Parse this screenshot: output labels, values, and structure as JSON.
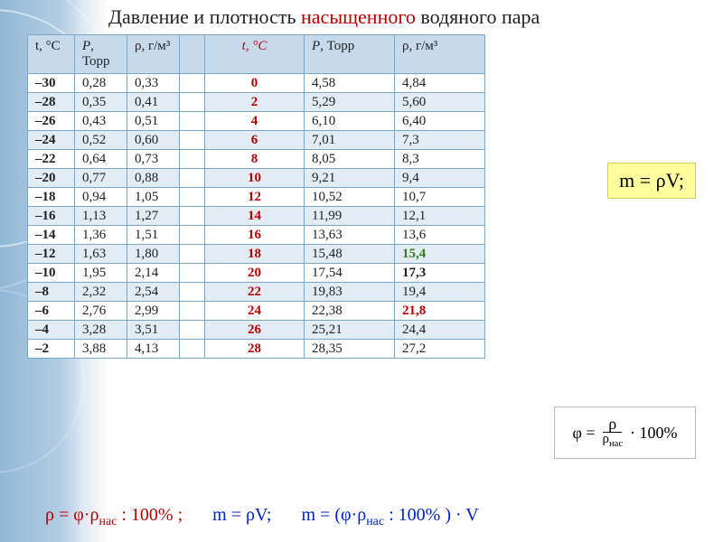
{
  "title": {
    "pre": "Давление и плотность ",
    "hl": "насыщенного",
    "post": " водяного пара"
  },
  "headers": {
    "t1": "t, °C",
    "p1": "P, Торр",
    "rho1": "ρ, г/м³",
    "t2": "t, °C",
    "p2": "P, Торр",
    "rho2": "ρ, г/м³"
  },
  "rows": [
    {
      "t1": "–30",
      "p1": "0,28",
      "rho1": "0,33",
      "t2": "0",
      "p2": "4,58",
      "rho2": "4,84"
    },
    {
      "t1": "–28",
      "p1": "0,35",
      "rho1": "0,41",
      "t2": "2",
      "p2": "5,29",
      "rho2": "5,60"
    },
    {
      "t1": "–26",
      "p1": "0,43",
      "rho1": "0,51",
      "t2": "4",
      "p2": "6,10",
      "rho2": "6,40"
    },
    {
      "t1": "–24",
      "p1": "0,52",
      "rho1": "0,60",
      "t2": "6",
      "p2": "7,01",
      "rho2": "7,3"
    },
    {
      "t1": "–22",
      "p1": "0,64",
      "rho1": "0,73",
      "t2": "8",
      "p2": "8,05",
      "rho2": "8,3"
    },
    {
      "t1": "–20",
      "p1": "0,77",
      "rho1": "0,88",
      "t2": "10",
      "p2": "9,21",
      "rho2": "9,4"
    },
    {
      "t1": "–18",
      "p1": "0,94",
      "rho1": "1,05",
      "t2": "12",
      "p2": "10,52",
      "rho2": "10,7"
    },
    {
      "t1": "–16",
      "p1": "1,13",
      "rho1": "1,27",
      "t2": "14",
      "p2": "11,99",
      "rho2": "12,1"
    },
    {
      "t1": "–14",
      "p1": "1,36",
      "rho1": "1,51",
      "t2": "16",
      "p2": "13,63",
      "rho2": "13,6"
    },
    {
      "t1": "–12",
      "p1": "1,63",
      "rho1": "1,80",
      "t2": "18",
      "p2": "15,48",
      "rho2": "15,4",
      "rho2_style": "green"
    },
    {
      "t1": "–10",
      "p1": "1,95",
      "rho1": "2,14",
      "t2": "20",
      "p2": "17,54",
      "rho2": "17,3",
      "rho2_style": "boldv"
    },
    {
      "t1": "–8",
      "p1": "2,32",
      "rho1": "2,54",
      "t2": "22",
      "p2": "19,83",
      "rho2": "19,4"
    },
    {
      "t1": "–6",
      "p1": "2,76",
      "rho1": "2,99",
      "t2": "24",
      "p2": "22,38",
      "rho2": "21,8",
      "rho2_style": "redv"
    },
    {
      "t1": "–4",
      "p1": "3,28",
      "rho1": "3,51",
      "t2": "26",
      "p2": "25,21",
      "rho2": "24,4"
    },
    {
      "t1": "–2",
      "p1": "3,88",
      "rho1": "4,13",
      "t2": "28",
      "p2": "28,35",
      "rho2": "27,2"
    }
  ],
  "col_widths": {
    "t1": 52,
    "p1": 58,
    "rho1": 58,
    "gap": 28,
    "t2": 110,
    "p2": 100,
    "rho2": 100
  },
  "formula_mass": "m = ρV;",
  "formula_phi": {
    "lhs": "φ =",
    "num": "ρ",
    "den": "ρнас",
    "tail": "· 100%"
  },
  "bottom": {
    "f1": "ρ = φ·ρнас : 100% ;",
    "f2": "m = ρV;",
    "f3": "m = (φ·ρнас : 100% ) · V"
  },
  "colors": {
    "header_bg": "#c7daeb",
    "row_alt_bg": "#e2ecf5",
    "border": "#7fa5c4",
    "highlight_red": "#c00000",
    "highlight_green": "#3a7d1e",
    "highlight_blue": "#0022cc",
    "formula_box_bg": "#ffff9e"
  }
}
